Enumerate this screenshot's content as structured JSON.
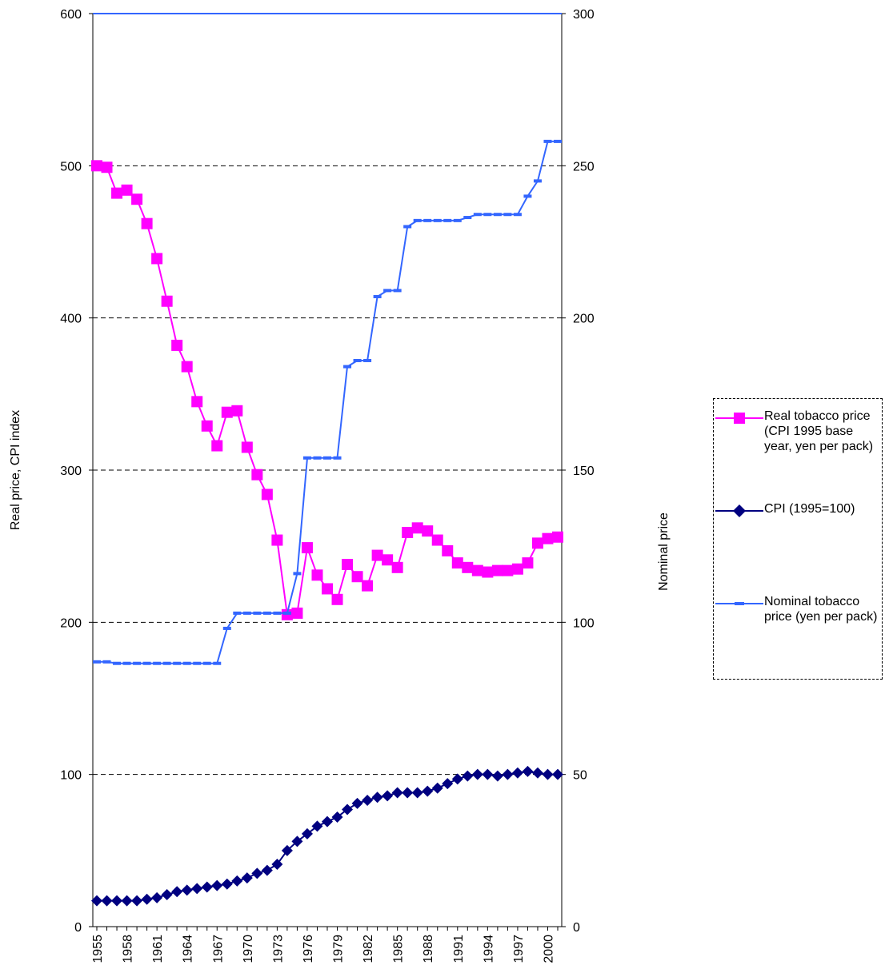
{
  "chart_data": {
    "type": "line",
    "x": [
      1955,
      1956,
      1957,
      1958,
      1959,
      1960,
      1961,
      1962,
      1963,
      1964,
      1965,
      1966,
      1967,
      1968,
      1969,
      1970,
      1971,
      1972,
      1973,
      1974,
      1975,
      1976,
      1977,
      1978,
      1979,
      1980,
      1981,
      1982,
      1983,
      1984,
      1985,
      1986,
      1987,
      1988,
      1989,
      1990,
      1991,
      1992,
      1993,
      1994,
      1995,
      1996,
      1997,
      1998,
      1999,
      2000,
      2001
    ],
    "x_tick_labels": [
      "1955",
      "1958",
      "1961",
      "1964",
      "1967",
      "1970",
      "1973",
      "1976",
      "1979",
      "1982",
      "1985",
      "1988",
      "1991",
      "1994",
      "1997",
      "2000"
    ],
    "xlim": [
      1955,
      2001
    ],
    "ylim_left": [
      0,
      600
    ],
    "ylim_right": [
      0,
      300
    ],
    "y_ticks_left": [
      "0",
      "100",
      "200",
      "300",
      "400",
      "500",
      "600"
    ],
    "y_ticks_right": [
      "0",
      "50",
      "100",
      "150",
      "200",
      "250",
      "300"
    ],
    "ylabel_left": "Real price, CPI index",
    "ylabel_right": "Nominal price",
    "grid": "horizontal-dashed",
    "legend_position": "right",
    "series": [
      {
        "name": "Real tobacco price (CPI 1995 base year, yen per pack)",
        "axis": "left",
        "color": "#ff00ff",
        "marker": "square",
        "values": [
          500,
          499,
          482,
          484,
          478,
          462,
          439,
          411,
          382,
          368,
          345,
          329,
          316,
          338,
          339,
          315,
          297,
          284,
          254,
          205,
          206,
          249,
          231,
          222,
          215,
          238,
          230,
          224,
          244,
          241,
          236,
          259,
          262,
          260,
          254,
          247,
          239,
          236,
          234,
          233,
          234,
          234,
          235,
          239,
          252,
          255,
          256
        ]
      },
      {
        "name": "CPI (1995=100)",
        "axis": "left",
        "color": "#000080",
        "marker": "diamond",
        "values": [
          17,
          17,
          17,
          17,
          17,
          18,
          19,
          21,
          23,
          24,
          25,
          26,
          27,
          28,
          30,
          32,
          35,
          37,
          41,
          50,
          56,
          61,
          66,
          69,
          72,
          77,
          81,
          83,
          85,
          86,
          88,
          88,
          88,
          89,
          91,
          94,
          97,
          99,
          100,
          100,
          99,
          100,
          101,
          102,
          101,
          100,
          100
        ]
      },
      {
        "name": "Nominal tobacco price (yen per pack)",
        "axis": "right",
        "color": "#3366ff",
        "marker": "dash",
        "values": [
          87,
          87,
          86.5,
          86.5,
          86.5,
          86.5,
          86.5,
          86.5,
          86.5,
          86.5,
          86.5,
          86.5,
          86.5,
          98,
          103,
          103,
          103,
          103,
          103,
          103,
          116,
          154,
          154,
          154,
          154,
          184,
          186,
          186,
          207,
          209,
          209,
          230,
          232,
          232,
          232,
          232,
          232,
          233,
          234,
          234,
          234,
          234,
          234,
          240,
          245,
          258,
          258
        ]
      }
    ]
  }
}
